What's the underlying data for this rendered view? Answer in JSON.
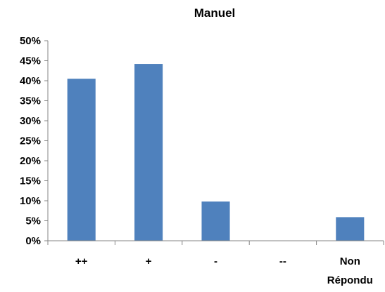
{
  "chart_data": {
    "type": "bar",
    "title": "Manuel",
    "categories": [
      "++",
      "+",
      "-",
      "--",
      "Non Répondu"
    ],
    "category_lines": [
      [
        "++"
      ],
      [
        "+"
      ],
      [
        "-"
      ],
      [
        "--"
      ],
      [
        "Non",
        "Répondu"
      ]
    ],
    "values": [
      40.5,
      44.2,
      9.8,
      0,
      5.9
    ],
    "ylim": [
      0,
      50
    ],
    "yticks": [
      0,
      5,
      10,
      15,
      20,
      25,
      30,
      35,
      40,
      45,
      50
    ],
    "ytick_labels": [
      "0%",
      "5%",
      "10%",
      "15%",
      "20%",
      "25%",
      "30%",
      "35%",
      "40%",
      "45%",
      "50%"
    ],
    "grid": false,
    "xlabel": "",
    "ylabel": "",
    "bar_color": "#4f81bd"
  }
}
